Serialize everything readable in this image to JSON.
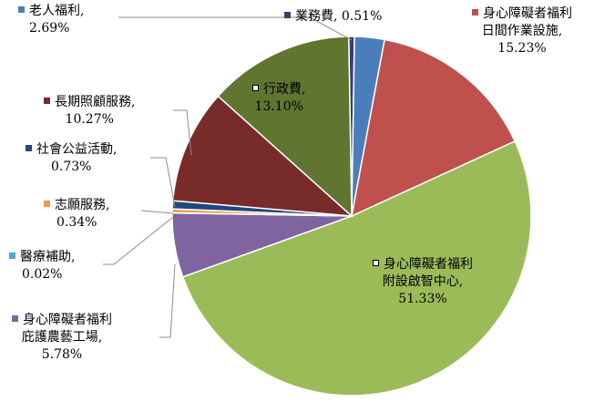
{
  "chart_data": {
    "type": "pie",
    "slices": [
      {
        "id": "yewu",
        "name": "業務費",
        "value_label": "0.51%",
        "value": 0.51,
        "color": "#3d3b6e"
      },
      {
        "id": "laoren",
        "name": "老人福利",
        "value_label": "2.69%",
        "value": 2.69,
        "color": "#4a7ebb"
      },
      {
        "id": "rijian",
        "name": "身心障礙者福利日間作業設施",
        "value_label": "15.23%",
        "value": 15.23,
        "color": "#c0504d"
      },
      {
        "id": "zhineng",
        "name": "身心障礙者福利附設啟智中心",
        "value_label": "51.33%",
        "value": 51.33,
        "color": "#9bbb59"
      },
      {
        "id": "nongyi",
        "name": "身心障礙者福利庇護農藝工場",
        "value_label": "5.78%",
        "value": 5.78,
        "color": "#8064a2"
      },
      {
        "id": "yiliao",
        "name": "醫療補助",
        "value_label": "0.02%",
        "value": 0.02,
        "color": "#4bacc6"
      },
      {
        "id": "zhiyuan",
        "name": "志願服務",
        "value_label": "0.34%",
        "value": 0.34,
        "color": "#f79646"
      },
      {
        "id": "shehui",
        "name": "社會公益活動",
        "value_label": "0.73%",
        "value": 0.73,
        "color": "#1f497d"
      },
      {
        "id": "changqi",
        "name": "長期照顧服務",
        "value_label": "10.27%",
        "value": 10.27,
        "color": "#772c2a"
      },
      {
        "id": "xingzheng",
        "name": "行政費",
        "value_label": "13.10%",
        "value": 13.1,
        "color": "#5f7530"
      }
    ]
  },
  "labels": {
    "laoren": {
      "l1": "老人福利,",
      "l2": "2.69%"
    },
    "yewu": {
      "l1": "業務費, 0.51%"
    },
    "rijian": {
      "l1": "身心障礙者福利",
      "l2": "日間作業設施,",
      "l3": "15.23%"
    },
    "xingzheng": {
      "l1": "行政費,",
      "l2": "13.10%"
    },
    "changqi": {
      "l1": "長期照顧服務,",
      "l2": "10.27%"
    },
    "shehui": {
      "l1": "社會公益活動,",
      "l2": "0.73%"
    },
    "zhiyuan": {
      "l1": "志願服務,",
      "l2": "0.34%"
    },
    "yiliao": {
      "l1": "醫療補助,",
      "l2": "0.02%"
    },
    "nongyi": {
      "l1": "身心障礙者福利",
      "l2": "庇護農藝工場,",
      "l3": "5.78%"
    },
    "zhineng": {
      "l1": "身心障礙者福利",
      "l2": "附設啟智中心,",
      "l3": "51.33%"
    }
  }
}
